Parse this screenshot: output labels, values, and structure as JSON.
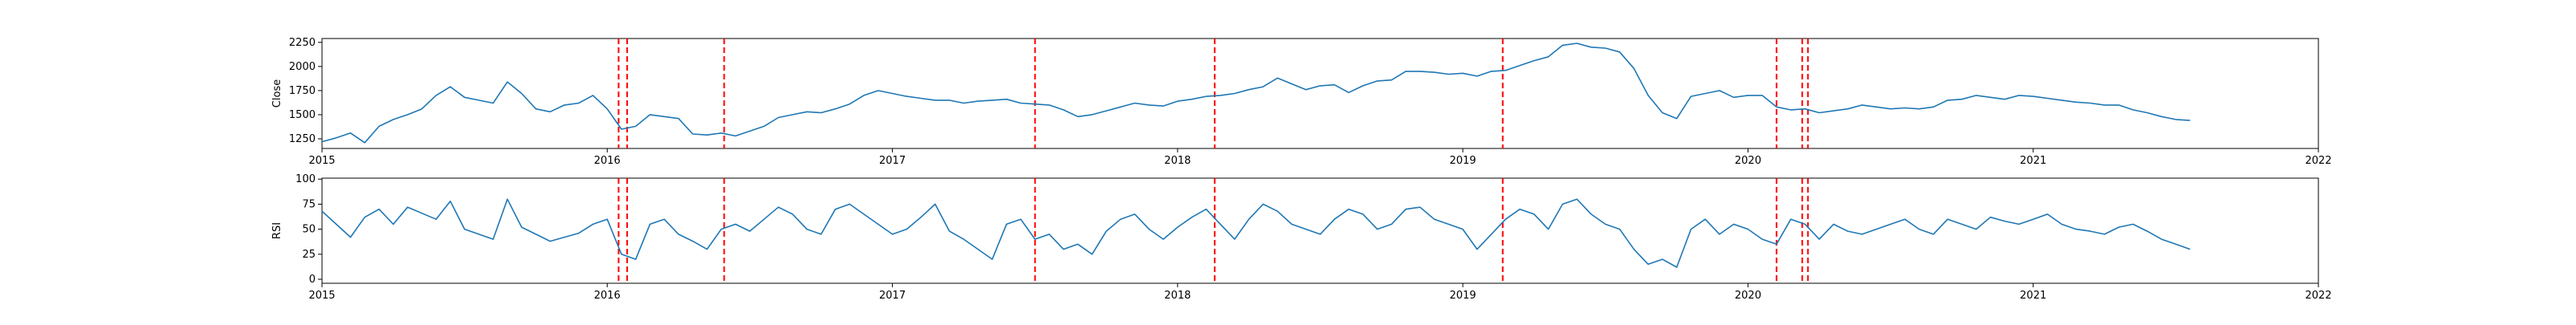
{
  "chart_data": [
    {
      "type": "line",
      "ylabel": "Close",
      "yticks": [
        1250,
        1500,
        1750,
        2000,
        2250
      ],
      "ylim": [
        1150,
        2290
      ],
      "xlim": [
        2015.0,
        2022.0
      ],
      "xticks": [
        "2015",
        "2016",
        "2017",
        "2018",
        "2019",
        "2020",
        "2021",
        "2022"
      ],
      "line_color": "#1f77b4",
      "series": [
        {
          "x": [
            2015.0,
            2015.05,
            2015.1,
            2015.15,
            2015.2,
            2015.25,
            2015.3,
            2015.35,
            2015.4,
            2015.45,
            2015.5,
            2015.55,
            2015.6,
            2015.65,
            2015.7,
            2015.75,
            2015.8,
            2015.85,
            2015.9,
            2015.95,
            2016.0,
            2016.05,
            2016.1,
            2016.15,
            2016.2,
            2016.25,
            2016.3,
            2016.35,
            2016.4,
            2016.45,
            2016.5,
            2016.55,
            2016.6,
            2016.65,
            2016.7,
            2016.75,
            2016.8,
            2016.85,
            2016.9,
            2016.95,
            2017.0,
            2017.05,
            2017.1,
            2017.15,
            2017.2,
            2017.25,
            2017.3,
            2017.35,
            2017.4,
            2017.45,
            2017.5,
            2017.55,
            2017.6,
            2017.65,
            2017.7,
            2017.75,
            2017.8,
            2017.85,
            2017.9,
            2017.95,
            2018.0,
            2018.05,
            2018.1,
            2018.15,
            2018.2,
            2018.25,
            2018.3,
            2018.35,
            2018.4,
            2018.45,
            2018.5,
            2018.55,
            2018.6,
            2018.65,
            2018.7,
            2018.75,
            2018.8,
            2018.85,
            2018.9,
            2018.95,
            2019.0,
            2019.05,
            2019.1,
            2019.15,
            2019.2,
            2019.25,
            2019.3,
            2019.35,
            2019.4,
            2019.45,
            2019.5,
            2019.55,
            2019.6,
            2019.65,
            2019.7,
            2019.75,
            2019.8,
            2019.85,
            2019.9,
            2019.95,
            2020.0,
            2020.05,
            2020.1,
            2020.15,
            2020.2,
            2020.25,
            2020.3,
            2020.35,
            2020.4,
            2020.45,
            2020.5,
            2020.55,
            2020.6,
            2020.65,
            2020.7,
            2020.75,
            2020.8,
            2020.85,
            2020.9,
            2020.95,
            2021.0,
            2021.05,
            2021.1,
            2021.15,
            2021.2,
            2021.25,
            2021.3,
            2021.35,
            2021.4,
            2021.45,
            2021.5,
            2021.55
          ],
          "y": [
            1220,
            1260,
            1310,
            1210,
            1380,
            1450,
            1500,
            1560,
            1700,
            1790,
            1680,
            1650,
            1620,
            1840,
            1720,
            1560,
            1530,
            1600,
            1620,
            1700,
            1560,
            1350,
            1380,
            1500,
            1480,
            1460,
            1300,
            1290,
            1310,
            1280,
            1330,
            1380,
            1470,
            1500,
            1530,
            1520,
            1560,
            1610,
            1700,
            1750,
            1720,
            1690,
            1670,
            1650,
            1650,
            1620,
            1640,
            1650,
            1660,
            1620,
            1610,
            1600,
            1550,
            1480,
            1500,
            1540,
            1580,
            1620,
            1600,
            1590,
            1640,
            1660,
            1690,
            1700,
            1720,
            1760,
            1790,
            1880,
            1820,
            1760,
            1800,
            1810,
            1730,
            1800,
            1850,
            1860,
            1950,
            1950,
            1940,
            1920,
            1930,
            1900,
            1950,
            1960,
            2010,
            2060,
            2100,
            2220,
            2240,
            2200,
            2190,
            2150,
            1980,
            1700,
            1520,
            1460,
            1690,
            1720,
            1750,
            1680,
            1700,
            1700,
            1580,
            1550,
            1560,
            1520,
            1540,
            1560,
            1600,
            1580,
            1560,
            1570,
            1560,
            1580,
            1650,
            1660,
            1700,
            1680,
            1660,
            1700,
            1690,
            1670,
            1650,
            1630,
            1620,
            1600,
            1600,
            1550,
            1520,
            1480,
            1450,
            1440
          ]
        }
      ]
    },
    {
      "type": "line",
      "ylabel": "RSI",
      "yticks": [
        0,
        25,
        50,
        75,
        100
      ],
      "ylim": [
        -4,
        101
      ],
      "xlim": [
        2015.0,
        2022.0
      ],
      "xticks": [
        "2015",
        "2016",
        "2017",
        "2018",
        "2019",
        "2020",
        "2021",
        "2022"
      ],
      "line_color": "#1f77b4",
      "series": [
        {
          "x": [
            2015.0,
            2015.05,
            2015.1,
            2015.15,
            2015.2,
            2015.25,
            2015.3,
            2015.35,
            2015.4,
            2015.45,
            2015.5,
            2015.55,
            2015.6,
            2015.65,
            2015.7,
            2015.75,
            2015.8,
            2015.85,
            2015.9,
            2015.95,
            2016.0,
            2016.05,
            2016.1,
            2016.15,
            2016.2,
            2016.25,
            2016.3,
            2016.35,
            2016.4,
            2016.45,
            2016.5,
            2016.55,
            2016.6,
            2016.65,
            2016.7,
            2016.75,
            2016.8,
            2016.85,
            2016.9,
            2016.95,
            2017.0,
            2017.05,
            2017.1,
            2017.15,
            2017.2,
            2017.25,
            2017.3,
            2017.35,
            2017.4,
            2017.45,
            2017.5,
            2017.55,
            2017.6,
            2017.65,
            2017.7,
            2017.75,
            2017.8,
            2017.85,
            2017.9,
            2017.95,
            2018.0,
            2018.05,
            2018.1,
            2018.15,
            2018.2,
            2018.25,
            2018.3,
            2018.35,
            2018.4,
            2018.45,
            2018.5,
            2018.55,
            2018.6,
            2018.65,
            2018.7,
            2018.75,
            2018.8,
            2018.85,
            2018.9,
            2018.95,
            2019.0,
            2019.05,
            2019.1,
            2019.15,
            2019.2,
            2019.25,
            2019.3,
            2019.35,
            2019.4,
            2019.45,
            2019.5,
            2019.55,
            2019.6,
            2019.65,
            2019.7,
            2019.75,
            2019.8,
            2019.85,
            2019.9,
            2019.95,
            2020.0,
            2020.05,
            2020.1,
            2020.15,
            2020.2,
            2020.25,
            2020.3,
            2020.35,
            2020.4,
            2020.45,
            2020.5,
            2020.55,
            2020.6,
            2020.65,
            2020.7,
            2020.75,
            2020.8,
            2020.85,
            2020.9,
            2020.95,
            2021.0,
            2021.05,
            2021.1,
            2021.15,
            2021.2,
            2021.25,
            2021.3,
            2021.35,
            2021.4,
            2021.45,
            2021.5,
            2021.55
          ],
          "y": [
            68,
            55,
            42,
            62,
            70,
            55,
            72,
            66,
            60,
            78,
            50,
            45,
            40,
            80,
            52,
            45,
            38,
            42,
            46,
            55,
            60,
            25,
            20,
            55,
            60,
            45,
            38,
            30,
            50,
            55,
            48,
            60,
            72,
            65,
            50,
            45,
            70,
            75,
            65,
            55,
            45,
            50,
            62,
            75,
            48,
            40,
            30,
            20,
            55,
            60,
            40,
            45,
            30,
            35,
            25,
            48,
            60,
            65,
            50,
            40,
            52,
            62,
            70,
            55,
            40,
            60,
            75,
            68,
            55,
            50,
            45,
            60,
            70,
            65,
            50,
            55,
            70,
            72,
            60,
            55,
            50,
            30,
            45,
            60,
            70,
            65,
            50,
            75,
            80,
            65,
            55,
            50,
            30,
            15,
            20,
            12,
            50,
            60,
            45,
            55,
            50,
            40,
            35,
            60,
            55,
            40,
            55,
            48,
            45,
            50,
            55,
            60,
            50,
            45,
            60,
            55,
            50,
            62,
            58,
            55,
            60,
            65,
            55,
            50,
            48,
            45,
            52,
            55,
            48,
            40,
            35,
            30
          ]
        }
      ]
    }
  ],
  "vline_color": "#ff0000",
  "event_lines": [
    2016.04,
    2016.07,
    2016.41,
    2017.5,
    2018.13,
    2019.14,
    2020.1,
    2020.19,
    2020.21
  ]
}
